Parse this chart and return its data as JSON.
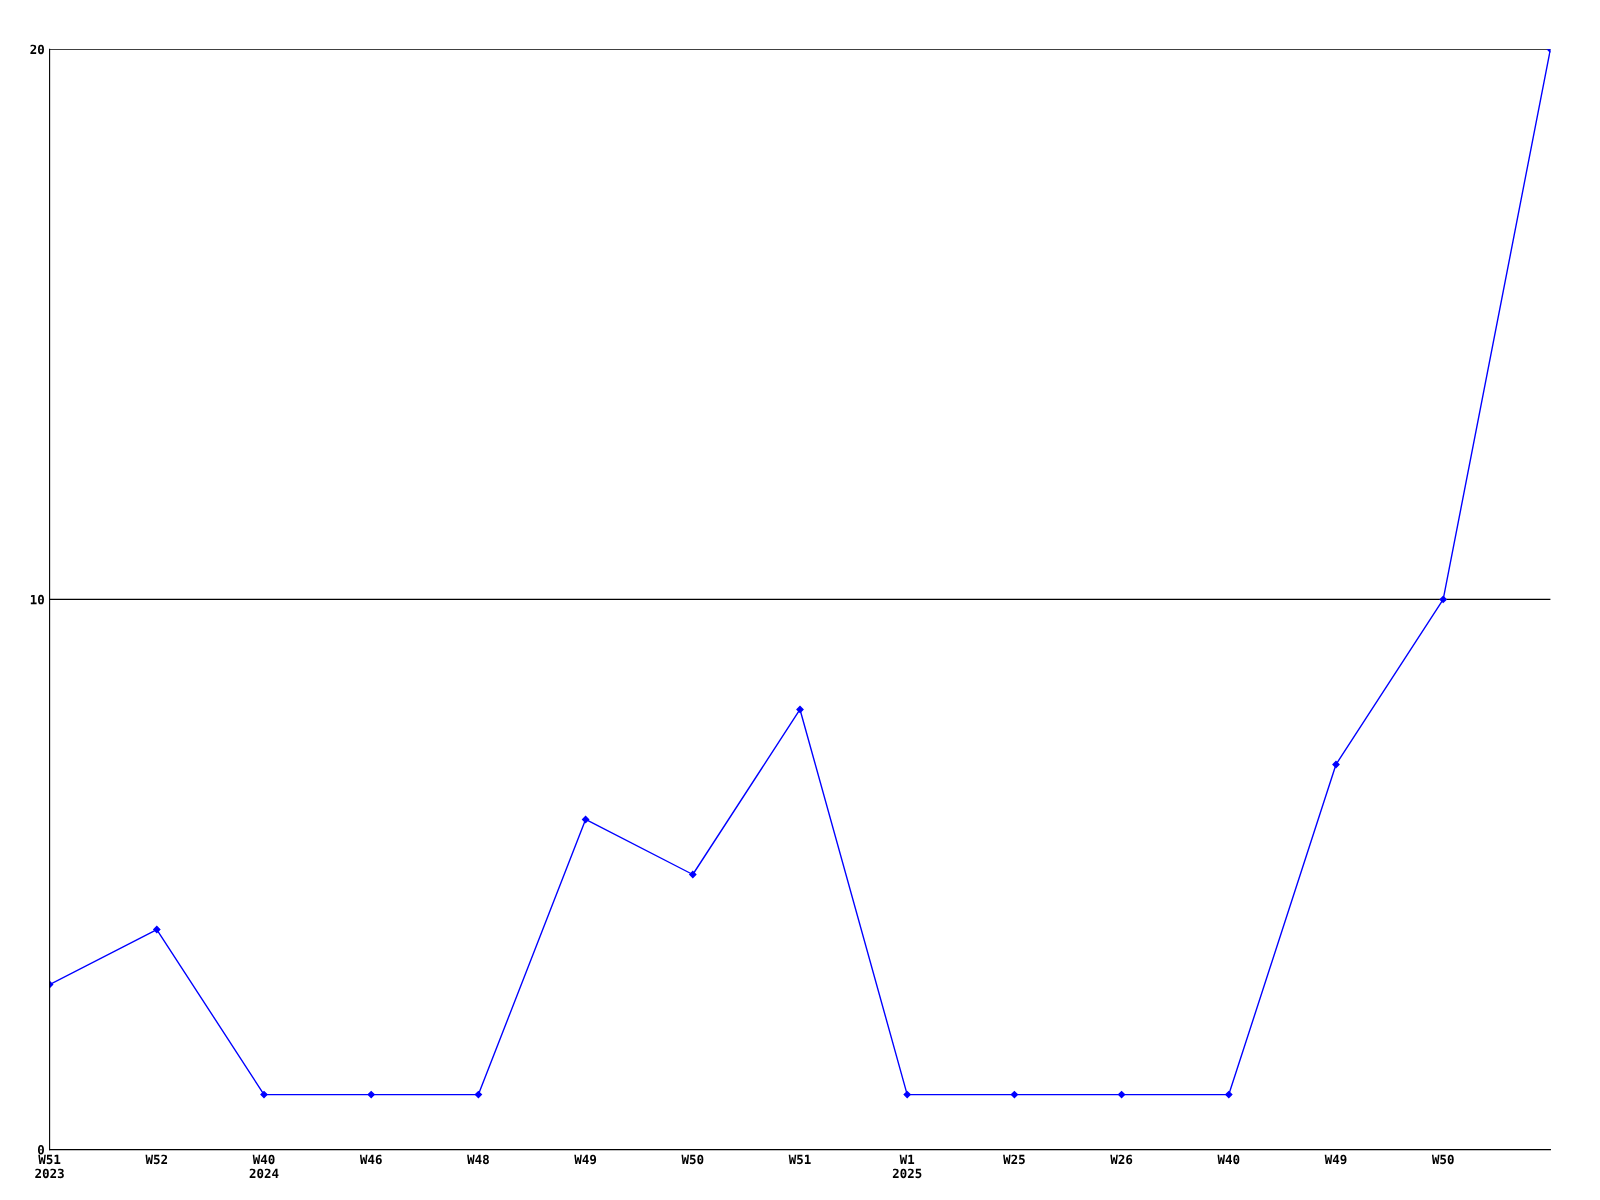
{
  "chart_data": {
    "type": "line",
    "categories": [
      "W51\n2023",
      "W52",
      "W40\n2024",
      "W46",
      "W48",
      "W49",
      "W50",
      "W51",
      "W1\n2025",
      "W25",
      "W26",
      "W40",
      "W49",
      "W50",
      null
    ],
    "series": [
      {
        "color": "#0000ff",
        "values": [
          3,
          4,
          1,
          1,
          1,
          6,
          5,
          8,
          1,
          1,
          1,
          1,
          7,
          10,
          20
        ]
      }
    ],
    "ylim": [
      0,
      20
    ],
    "yticks": [
      0,
      10,
      20
    ],
    "grid": "y",
    "marker": "diamond",
    "line_style": "solid"
  }
}
